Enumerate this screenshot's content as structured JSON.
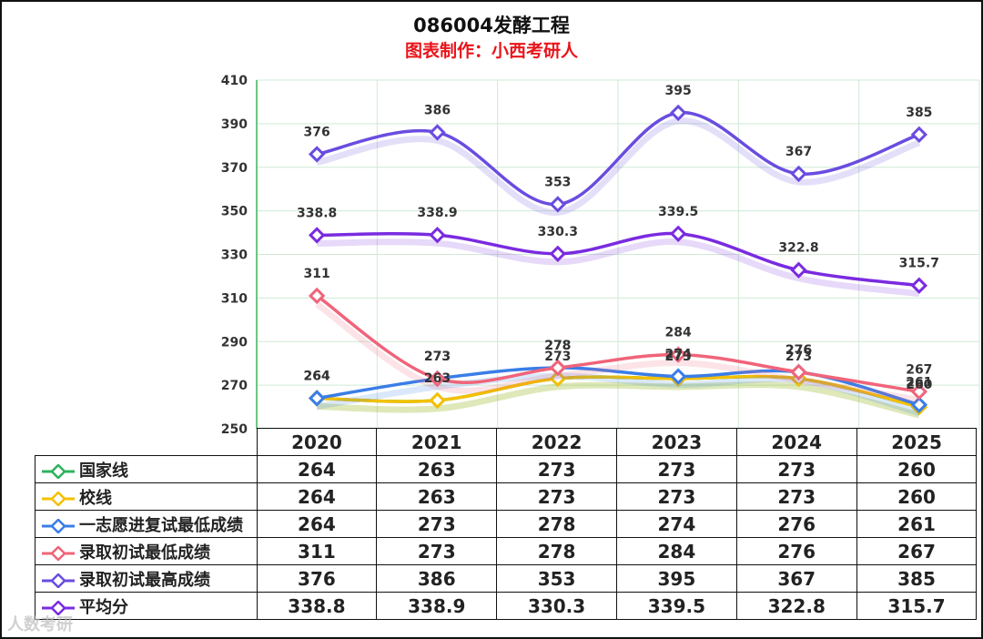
{
  "title": "086004发酵工程",
  "subtitle": "图表制作：小西考研人",
  "watermark": "人数考研",
  "chart_data": {
    "type": "line",
    "x": [
      "2020",
      "2021",
      "2022",
      "2023",
      "2024",
      "2025"
    ],
    "ylim": [
      250,
      410
    ],
    "yticks": [
      250,
      270,
      290,
      310,
      330,
      350,
      370,
      390,
      410
    ],
    "grid": true,
    "legend": "table-row-headers",
    "series": [
      {
        "name": "国家线",
        "color": "#2db35d",
        "values": [
          264,
          263,
          273,
          273,
          273,
          260
        ],
        "labels": false
      },
      {
        "name": "校线",
        "color": "#f5c000",
        "values": [
          264,
          263,
          273,
          273,
          273,
          260
        ],
        "labels": true
      },
      {
        "name": "一志愿进复试最低成绩",
        "color": "#3a7de8",
        "values": [
          264,
          273,
          278,
          274,
          276,
          261
        ],
        "labels": true
      },
      {
        "name": "录取初试最低成绩",
        "color": "#f0647a",
        "values": [
          311,
          273,
          278,
          284,
          276,
          267
        ],
        "labels": true
      },
      {
        "name": "录取初试最高成绩",
        "color": "#6a4ce0",
        "values": [
          376,
          386,
          353,
          395,
          367,
          385
        ],
        "labels": true
      },
      {
        "name": "平均分",
        "color": "#7a2be0",
        "values": [
          "338.8",
          "338.9",
          "330.3",
          "339.5",
          "322.8",
          "315.7"
        ],
        "labels": true
      }
    ]
  }
}
